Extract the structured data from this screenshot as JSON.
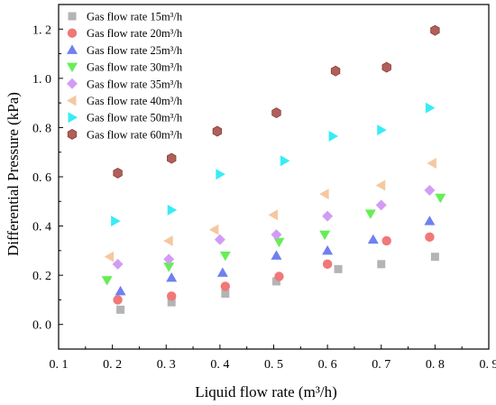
{
  "chart_data": {
    "type": "scatter",
    "xlabel": "Liquid flow rate  (m³/h)",
    "ylabel": "Differential Pressure  (kPa)",
    "xlim": [
      0.1,
      0.9
    ],
    "ylim": [
      -0.1,
      1.3
    ],
    "xticks": [
      0.1,
      0.2,
      0.3,
      0.4,
      0.5,
      0.6,
      0.7,
      0.8,
      0.9
    ],
    "yticks": [
      0.0,
      0.2,
      0.4,
      0.6,
      0.8,
      1.0,
      1.2
    ],
    "xtick_labels": [
      "0. 1",
      "0. 2",
      "0. 3",
      "0. 4",
      "0. 5",
      "0. 6",
      "0. 7",
      "0. 8",
      "0. 9"
    ],
    "ytick_labels": [
      "0. 0",
      "0. 2",
      "0. 4",
      "0. 6",
      "0. 8",
      "1. 0",
      "1. 2"
    ],
    "legend_position": "top-left",
    "grid": false,
    "series": [
      {
        "name": "Gas flow rate 15m³/h",
        "marker": "square",
        "color": "#b4b4b4",
        "x": [
          0.215,
          0.31,
          0.41,
          0.505,
          0.62,
          0.7,
          0.8
        ],
        "y": [
          0.06,
          0.09,
          0.125,
          0.175,
          0.225,
          0.245,
          0.275
        ]
      },
      {
        "name": "Gas flow rate 20m³/h",
        "marker": "circle",
        "color": "#f07878",
        "x": [
          0.21,
          0.31,
          0.41,
          0.51,
          0.6,
          0.71,
          0.79
        ],
        "y": [
          0.1,
          0.115,
          0.155,
          0.195,
          0.245,
          0.34,
          0.355
        ]
      },
      {
        "name": "Gas flow rate 25m³/h",
        "marker": "triangle-up",
        "color": "#7080f0",
        "x": [
          0.215,
          0.31,
          0.405,
          0.505,
          0.6,
          0.685,
          0.79
        ],
        "y": [
          0.135,
          0.19,
          0.21,
          0.28,
          0.3,
          0.345,
          0.42
        ]
      },
      {
        "name": "Gas flow rate 30m³/h",
        "marker": "triangle-down",
        "color": "#66ee55",
        "x": [
          0.19,
          0.305,
          0.41,
          0.51,
          0.595,
          0.68,
          0.81
        ],
        "y": [
          0.18,
          0.235,
          0.28,
          0.335,
          0.365,
          0.45,
          0.515
        ]
      },
      {
        "name": "Gas flow rate 35m³/h",
        "marker": "diamond",
        "color": "#d29cf5",
        "x": [
          0.21,
          0.305,
          0.4,
          0.505,
          0.6,
          0.7,
          0.79
        ],
        "y": [
          0.245,
          0.265,
          0.345,
          0.365,
          0.44,
          0.485,
          0.545
        ]
      },
      {
        "name": "Gas flow rate 40m³/h",
        "marker": "triangle-left",
        "color": "#f5c8a0",
        "x": [
          0.195,
          0.305,
          0.39,
          0.5,
          0.595,
          0.7,
          0.795
        ],
        "y": [
          0.275,
          0.34,
          0.385,
          0.445,
          0.53,
          0.565,
          0.655
        ]
      },
      {
        "name": "Gas flow rate 50m³/h",
        "marker": "triangle-right",
        "color": "#38ecf5",
        "x": [
          0.205,
          0.31,
          0.4,
          0.52,
          0.61,
          0.7,
          0.79
        ],
        "y": [
          0.42,
          0.465,
          0.61,
          0.665,
          0.765,
          0.79,
          0.88
        ]
      },
      {
        "name": "Gas flow rate 60m³/h",
        "marker": "hexagon",
        "color": "#b0605a",
        "x": [
          0.21,
          0.31,
          0.395,
          0.505,
          0.615,
          0.71,
          0.8
        ],
        "y": [
          0.615,
          0.675,
          0.785,
          0.86,
          1.03,
          1.045,
          1.195
        ]
      }
    ]
  }
}
